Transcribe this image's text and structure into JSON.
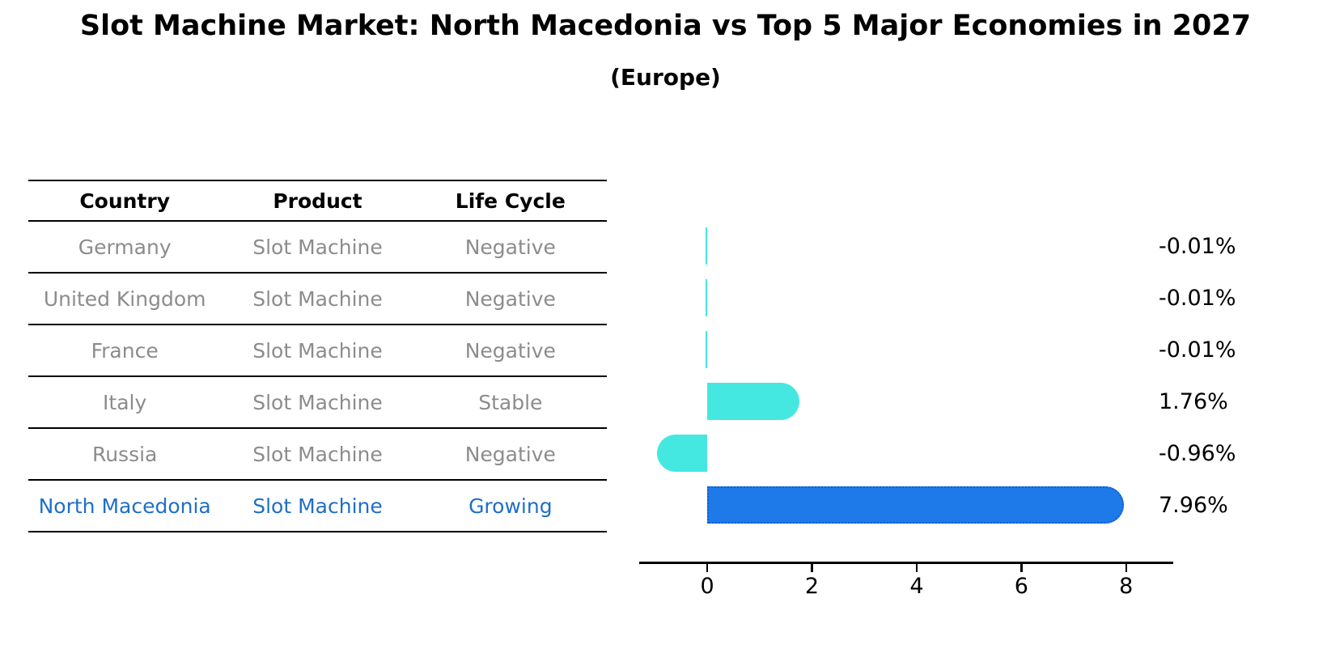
{
  "title": "Slot Machine Market: North Macedonia vs Top 5 Major Economies in 2027",
  "subtitle": "(Europe)",
  "table": {
    "headers": [
      "Country",
      "Product",
      "Life Cycle"
    ],
    "rows": [
      {
        "country": "Germany",
        "product": "Slot Machine",
        "life_cycle": "Negative",
        "highlighted": false
      },
      {
        "country": "United Kingdom",
        "product": "Slot Machine",
        "life_cycle": "Negative",
        "highlighted": false
      },
      {
        "country": "France",
        "product": "Slot Machine",
        "life_cycle": "Negative",
        "highlighted": false
      },
      {
        "country": "Italy",
        "product": "Slot Machine",
        "life_cycle": "Stable",
        "highlighted": false
      },
      {
        "country": "Russia",
        "product": "Slot Machine",
        "life_cycle": "Negative",
        "highlighted": false
      },
      {
        "country": "North Macedonia",
        "product": "Slot Machine",
        "life_cycle": "Growing",
        "highlighted": true
      }
    ]
  },
  "chart_data": {
    "type": "bar",
    "orientation": "horizontal",
    "title": "Slot Machine Market: North Macedonia vs Top 5 Major Economies in 2027 (Europe)",
    "categories": [
      "Germany",
      "United Kingdom",
      "France",
      "Italy",
      "Russia",
      "North Macedonia"
    ],
    "values": [
      -0.01,
      -0.01,
      -0.01,
      1.76,
      -0.96,
      7.96
    ],
    "value_labels": [
      "-0.01%",
      "-0.01%",
      "-0.01%",
      "1.76%",
      "-0.96%",
      "7.96%"
    ],
    "unit": "%",
    "xticks": [
      0,
      2,
      4,
      6,
      8
    ],
    "xlim": [
      -1.3,
      8.9
    ],
    "grid": false,
    "legend": false,
    "highlight_index": 5,
    "colors": {
      "default": "#45e8e1",
      "highlight": "#1e7ae8",
      "highlight_border": "#0d5ed8"
    }
  },
  "colors": {
    "table_text": "#8c8c8c",
    "table_header_text": "#000000",
    "highlight_text": "#1e6fc8",
    "axis": "#000000",
    "background": "#ffffff"
  }
}
